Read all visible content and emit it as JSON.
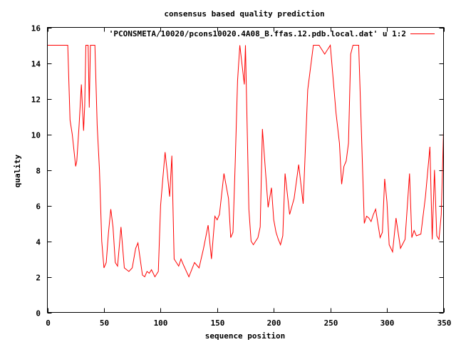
{
  "chart_data": {
    "type": "line",
    "title": "consensus based quality prediction",
    "xlabel": "sequence position",
    "ylabel": "quality",
    "xlim": [
      0,
      350
    ],
    "ylim": [
      0,
      16
    ],
    "x_ticks": [
      "0",
      "50",
      "100",
      "150",
      "200",
      "250",
      "300",
      "350"
    ],
    "y_ticks": [
      "0",
      "2",
      "4",
      "6",
      "8",
      "10",
      "12",
      "14",
      "16"
    ],
    "legend_position": "top-right",
    "grid": false,
    "series": [
      {
        "name": "'PCONSMETA/10020/pcons10020.4A08_B.ffas.12.pdb.local.dat' u 1:2",
        "color": "#ff0000",
        "x": [
          0,
          18,
          20,
          22,
          25,
          26,
          28,
          30,
          32,
          33,
          34,
          36,
          37,
          38,
          40,
          42,
          44,
          46,
          48,
          50,
          52,
          54,
          56,
          58,
          60,
          62,
          65,
          68,
          70,
          72,
          75,
          78,
          80,
          84,
          86,
          88,
          90,
          92,
          95,
          98,
          100,
          102,
          104,
          106,
          108,
          110,
          112,
          114,
          116,
          118,
          120,
          125,
          130,
          134,
          138,
          142,
          145,
          148,
          150,
          152,
          156,
          160,
          162,
          164,
          166,
          168,
          170,
          174,
          175,
          178,
          180,
          182,
          184,
          186,
          188,
          190,
          195,
          198,
          200,
          202,
          204,
          206,
          208,
          210,
          214,
          218,
          222,
          226,
          230,
          235,
          240,
          245,
          250,
          255,
          258,
          260,
          262,
          264,
          266,
          268,
          270,
          272,
          275,
          280,
          282,
          284,
          286,
          288,
          290,
          294,
          296,
          298,
          300,
          302,
          305,
          308,
          312,
          316,
          320,
          322,
          324,
          326,
          330,
          334,
          338,
          340,
          342,
          344,
          346,
          348,
          350
        ],
        "y": [
          15,
          15,
          10.8,
          10,
          8.2,
          8.5,
          10.5,
          12.8,
          10.2,
          11.6,
          15,
          15,
          11.5,
          15,
          15,
          15,
          10.5,
          8,
          4,
          2.5,
          2.8,
          4.5,
          5.8,
          4.8,
          2.8,
          2.6,
          4.8,
          2.5,
          2.4,
          2.3,
          2.5,
          3.6,
          3.9,
          2.1,
          2,
          2.3,
          2.2,
          2.4,
          2,
          2.3,
          6,
          7.5,
          9,
          7.8,
          6.5,
          8.8,
          3,
          2.8,
          2.6,
          3,
          2.7,
          2,
          2.8,
          2.5,
          3.6,
          4.9,
          3,
          5.4,
          5.2,
          5.5,
          7.8,
          6.4,
          4.2,
          4.5,
          8.5,
          13,
          15,
          12.8,
          15,
          5.8,
          4,
          3.8,
          4,
          4.2,
          4.8,
          10.3,
          5.9,
          7,
          5.2,
          4.5,
          4.1,
          3.8,
          4.3,
          7.8,
          5.5,
          6.4,
          8.3,
          6.1,
          12.5,
          15,
          15,
          14.5,
          15,
          11.2,
          9.5,
          7.2,
          8.2,
          8.5,
          9.5,
          14.5,
          15,
          15,
          15,
          5,
          5.4,
          5.3,
          5.1,
          5.5,
          5.8,
          4.2,
          4.5,
          7.5,
          6.2,
          3.8,
          3.4,
          5.3,
          3.6,
          4.1,
          7.8,
          4.2,
          4.6,
          4.3,
          4.4,
          6.5,
          9.3,
          4.1,
          8,
          4.3,
          4.1,
          5.5,
          10.2
        ]
      }
    ]
  }
}
